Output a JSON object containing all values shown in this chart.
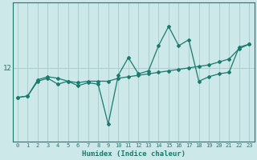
{
  "xlabel": "Humidex (Indice chaleur)",
  "background_color": "#cce8e8",
  "grid_color": "#aacfcf",
  "line_color": "#1a7a6e",
  "x_data": [
    0,
    1,
    2,
    3,
    4,
    5,
    6,
    7,
    8,
    9,
    10,
    11,
    12,
    13,
    14,
    15,
    16,
    17,
    18,
    19,
    20,
    21,
    22,
    23
  ],
  "y_wavy": [
    11.0,
    11.05,
    11.55,
    11.65,
    11.45,
    11.55,
    11.4,
    11.5,
    11.45,
    10.1,
    11.75,
    12.35,
    11.8,
    11.9,
    12.75,
    13.4,
    12.75,
    12.95,
    11.55,
    11.7,
    11.8,
    11.85,
    12.7,
    12.8
  ],
  "y_trend": [
    11.0,
    11.05,
    11.6,
    11.7,
    11.65,
    11.55,
    11.5,
    11.55,
    11.55,
    11.55,
    11.65,
    11.7,
    11.75,
    11.8,
    11.85,
    11.9,
    11.95,
    12.0,
    12.05,
    12.1,
    12.2,
    12.3,
    12.65,
    12.8
  ],
  "ytick_labels": [
    "12"
  ],
  "ytick_values": [
    12.0
  ],
  "xlim": [
    -0.5,
    23.5
  ],
  "ylim": [
    9.5,
    14.2
  ],
  "figsize": [
    3.2,
    2.0
  ],
  "dpi": 100
}
